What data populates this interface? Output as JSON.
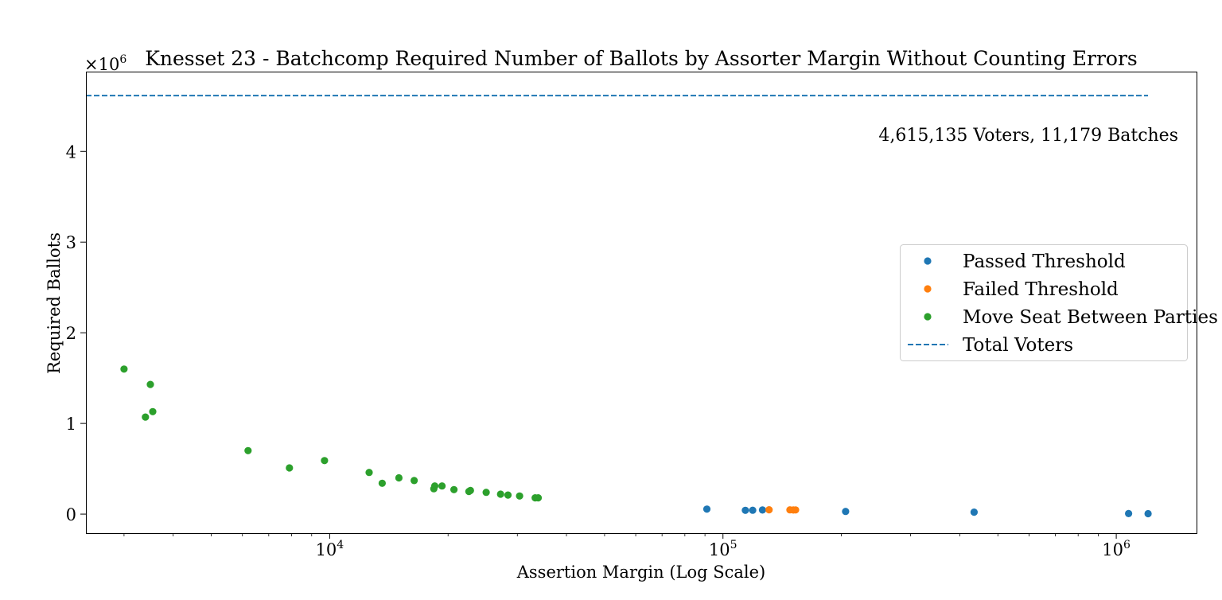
{
  "chart_data": {
    "type": "scatter",
    "title": "Knesset 23 - Batchcomp Required Number of Ballots by Assorter Margin Without Counting Errors",
    "xlabel": "Assertion Margin (Log Scale)",
    "ylabel": "Required Ballots",
    "x_scale": "log",
    "xlim": [
      2400,
      1600000
    ],
    "ylim": [
      -210000,
      4880000
    ],
    "y_multiplier": "×10",
    "y_multiplier_exp": "6",
    "x_ticks": [
      {
        "value": 10000,
        "base": "10",
        "exp": "4"
      },
      {
        "value": 100000,
        "base": "10",
        "exp": "5"
      },
      {
        "value": 1000000,
        "base": "10",
        "exp": "6"
      }
    ],
    "y_ticks": [
      {
        "value": 0,
        "label": "0"
      },
      {
        "value": 1000000,
        "label": "1"
      },
      {
        "value": 2000000,
        "label": "2"
      },
      {
        "value": 3000000,
        "label": "3"
      },
      {
        "value": 4000000,
        "label": "4"
      }
    ],
    "grid": false,
    "legend_position": "center-right",
    "annotation": "4,615,135 Voters, 11,179 Batches",
    "total_voters_line": {
      "name": "Total Voters",
      "y": 4615135,
      "color": "#1f77b4"
    },
    "series": [
      {
        "name": "Passed Threshold",
        "color": "#1f77b4",
        "points": [
          [
            91000,
            55000
          ],
          [
            114000,
            42000
          ],
          [
            119000,
            43000
          ],
          [
            126000,
            45000
          ],
          [
            205000,
            30000
          ],
          [
            435000,
            22000
          ],
          [
            1075000,
            6000
          ],
          [
            1205000,
            5000
          ]
        ]
      },
      {
        "name": "Failed Threshold",
        "color": "#ff7f0e",
        "points": [
          [
            131000,
            48000
          ],
          [
            148000,
            47000
          ],
          [
            151000,
            45000
          ],
          [
            153000,
            46000
          ]
        ]
      },
      {
        "name": "Move Seat Between Parties",
        "color": "#2ca02c",
        "points": [
          [
            3000,
            1600000
          ],
          [
            3400,
            1070000
          ],
          [
            3500,
            1430000
          ],
          [
            3550,
            1130000
          ],
          [
            6200,
            700000
          ],
          [
            7900,
            510000
          ],
          [
            9700,
            590000
          ],
          [
            12600,
            460000
          ],
          [
            13600,
            340000
          ],
          [
            15000,
            400000
          ],
          [
            16400,
            370000
          ],
          [
            18400,
            280000
          ],
          [
            18500,
            310000
          ],
          [
            19300,
            310000
          ],
          [
            20700,
            270000
          ],
          [
            22600,
            250000
          ],
          [
            22800,
            260000
          ],
          [
            25000,
            240000
          ],
          [
            27200,
            220000
          ],
          [
            28400,
            210000
          ],
          [
            30400,
            200000
          ],
          [
            33300,
            180000
          ],
          [
            33900,
            180000
          ]
        ]
      }
    ]
  }
}
